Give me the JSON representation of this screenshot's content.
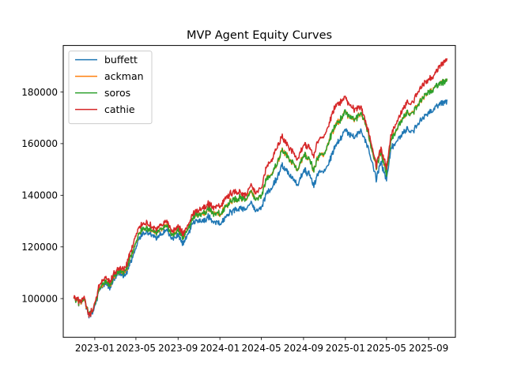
{
  "chart_data": {
    "type": "line",
    "title": "MVP Agent Equity Curves",
    "xlabel": "",
    "ylabel": "",
    "xlim": [
      "2022-10-01",
      "2025-11-18"
    ],
    "ylim": [
      85000,
      198000
    ],
    "grid": false,
    "legend_position": "top-left",
    "x_ticks": [
      "2023-01-01",
      "2023-05-01",
      "2023-09-01",
      "2024-01-01",
      "2024-05-01",
      "2024-09-01",
      "2025-01-01",
      "2025-05-01",
      "2025-09-01"
    ],
    "x_tick_labels": [
      "2023-01",
      "2023-05",
      "2023-09",
      "2024-01",
      "2024-05",
      "2024-09",
      "2025-01",
      "2025-05",
      "2025-09"
    ],
    "y_ticks": [
      100000,
      120000,
      140000,
      160000,
      180000
    ],
    "y_tick_labels": [
      "100000",
      "120000",
      "140000",
      "160000",
      "180000"
    ],
    "x": [
      "2022-11-01",
      "2022-11-15",
      "2022-12-01",
      "2022-12-15",
      "2023-01-01",
      "2023-01-15",
      "2023-02-01",
      "2023-02-15",
      "2023-03-01",
      "2023-03-15",
      "2023-04-01",
      "2023-04-15",
      "2023-05-01",
      "2023-05-15",
      "2023-06-01",
      "2023-06-15",
      "2023-07-01",
      "2023-07-15",
      "2023-08-01",
      "2023-08-15",
      "2023-09-01",
      "2023-09-15",
      "2023-10-01",
      "2023-10-15",
      "2023-11-01",
      "2023-11-15",
      "2023-12-01",
      "2023-12-15",
      "2024-01-01",
      "2024-01-15",
      "2024-02-01",
      "2024-02-15",
      "2024-03-01",
      "2024-03-15",
      "2024-04-01",
      "2024-04-15",
      "2024-05-01",
      "2024-05-15",
      "2024-06-01",
      "2024-06-15",
      "2024-07-01",
      "2024-07-15",
      "2024-08-01",
      "2024-08-15",
      "2024-09-01",
      "2024-09-15",
      "2024-10-01",
      "2024-10-15",
      "2024-11-01",
      "2024-11-15",
      "2024-12-01",
      "2024-12-15",
      "2025-01-01",
      "2025-01-15",
      "2025-02-01",
      "2025-02-15",
      "2025-03-01",
      "2025-03-15",
      "2025-04-01",
      "2025-04-15",
      "2025-05-01",
      "2025-05-15",
      "2025-06-01",
      "2025-06-15",
      "2025-07-01",
      "2025-07-15",
      "2025-08-01",
      "2025-08-15",
      "2025-09-01",
      "2025-09-15",
      "2025-10-01",
      "2025-10-15",
      "2025-10-25"
    ],
    "series": [
      {
        "name": "buffett",
        "color": "#1f77b4",
        "values": [
          100000,
          98500,
          99000,
          93000,
          96000,
          104000,
          105500,
          104000,
          108500,
          109500,
          109000,
          114000,
          119500,
          124500,
          126000,
          125000,
          123500,
          125000,
          126500,
          123000,
          124500,
          121000,
          125000,
          129500,
          130500,
          130000,
          132000,
          129000,
          129500,
          131000,
          133500,
          134500,
          135000,
          134500,
          136500,
          134000,
          135500,
          140500,
          143000,
          147000,
          151500,
          149000,
          146000,
          143500,
          150000,
          148500,
          144000,
          148500,
          150000,
          153000,
          158500,
          161500,
          165000,
          163000,
          162500,
          165500,
          161000,
          155500,
          146500,
          152500,
          146000,
          158500,
          160500,
          163500,
          166000,
          164500,
          167500,
          169500,
          171500,
          173500,
          175500,
          176000,
          177000
        ]
      },
      {
        "name": "ackman",
        "color": "#ff7f0e",
        "values": [
          100000,
          98500,
          99500,
          93500,
          97000,
          104500,
          106000,
          105000,
          109500,
          110500,
          110500,
          116000,
          121500,
          126500,
          127500,
          126500,
          125500,
          127000,
          128000,
          124500,
          126500,
          123500,
          127000,
          131500,
          133000,
          133000,
          135000,
          132500,
          133000,
          135000,
          137500,
          138500,
          139000,
          138500,
          141000,
          138500,
          140000,
          146000,
          148500,
          152500,
          157500,
          155000,
          152000,
          149500,
          156000,
          154500,
          150000,
          155000,
          156500,
          161500,
          166500,
          169000,
          172000,
          170000,
          169500,
          172500,
          167500,
          160500,
          151000,
          156500,
          148500,
          162000,
          165500,
          169000,
          172500,
          171500,
          175000,
          177500,
          179500,
          181500,
          183500,
          184000,
          185000
        ]
      },
      {
        "name": "soros",
        "color": "#2ca02c",
        "values": [
          100000,
          98500,
          99500,
          93500,
          97000,
          104500,
          106000,
          105000,
          109500,
          110500,
          110500,
          116000,
          121500,
          126500,
          127500,
          126500,
          125500,
          127000,
          128000,
          124500,
          126500,
          123500,
          127000,
          131500,
          133000,
          133000,
          135000,
          132500,
          133000,
          135000,
          137500,
          138500,
          139000,
          138500,
          141000,
          138500,
          140000,
          146000,
          148500,
          152500,
          157500,
          155000,
          152000,
          149500,
          156000,
          154500,
          150000,
          155000,
          156500,
          161500,
          166500,
          169000,
          172000,
          170000,
          169500,
          172500,
          167500,
          160500,
          151000,
          156500,
          148500,
          162000,
          165500,
          169000,
          172500,
          171500,
          175000,
          177500,
          179500,
          181500,
          183500,
          184000,
          185000
        ]
      },
      {
        "name": "cathie",
        "color": "#d62728",
        "values": [
          100000,
          99000,
          100000,
          93000,
          97500,
          106000,
          107500,
          106500,
          110500,
          111500,
          112000,
          118000,
          124500,
          128500,
          129500,
          128000,
          127000,
          128500,
          129500,
          126000,
          128000,
          125000,
          128500,
          133000,
          134500,
          135000,
          137000,
          135000,
          136000,
          138500,
          140500,
          141500,
          141000,
          140000,
          143500,
          141000,
          143000,
          150500,
          154000,
          159000,
          162500,
          159500,
          156500,
          153500,
          160000,
          159000,
          155500,
          161500,
          163500,
          168000,
          174000,
          176000,
          177500,
          174500,
          173000,
          175000,
          168500,
          162000,
          152000,
          158000,
          150500,
          164000,
          168000,
          172500,
          176500,
          175500,
          180000,
          182500,
          184500,
          186500,
          190000,
          191500,
          193000
        ]
      }
    ]
  }
}
